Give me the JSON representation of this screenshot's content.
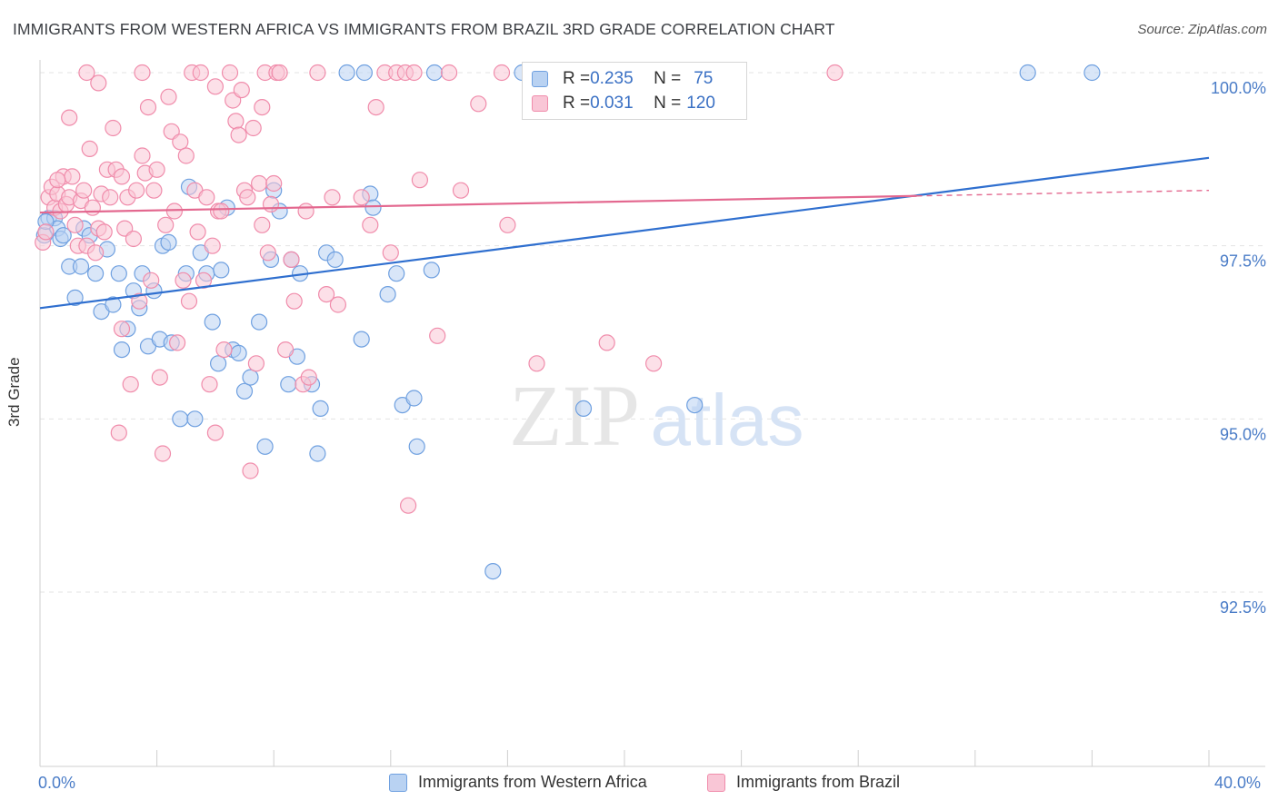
{
  "title": "IMMIGRANTS FROM WESTERN AFRICA VS IMMIGRANTS FROM BRAZIL 3RD GRADE CORRELATION CHART",
  "source": "Source: ZipAtlas.com",
  "watermark": {
    "zip": "ZIP",
    "atlas": "atlas"
  },
  "legend_box": {
    "rows": [
      {
        "r_label": "R = ",
        "r_value": "0.235",
        "n_label": "N = ",
        "n_value": "75",
        "color": "#6fa0e0"
      },
      {
        "r_label": "R = ",
        "r_value": "0.031",
        "n_label": "N = ",
        "n_value": "120",
        "color": "#f08cab"
      }
    ]
  },
  "bottom_legend": [
    {
      "label": "Immigrants from Western Africa",
      "color": "#6fa0e0"
    },
    {
      "label": "Immigrants from Brazil",
      "color": "#f08cab"
    }
  ],
  "chart_data": {
    "type": "scatter",
    "title": "IMMIGRANTS FROM WESTERN AFRICA VS IMMIGRANTS FROM BRAZIL 3RD GRADE CORRELATION CHART",
    "xlabel": "",
    "ylabel": "3rd Grade",
    "xlim": [
      0,
      40
    ],
    "ylim": [
      90.2,
      100.6
    ],
    "x_tick_labels": [
      "0.0%",
      "40.0%"
    ],
    "y_ticks": [
      92.5,
      95.0,
      97.5,
      100.0
    ],
    "y_tick_labels": [
      "92.5%",
      "95.0%",
      "97.5%",
      "100.0%"
    ],
    "grid": true,
    "series": [
      {
        "name": "Immigrants from Western Africa",
        "color": "#6fa0e0",
        "trend": {
          "x": [
            0,
            40
          ],
          "y": [
            96.6,
            98.77
          ]
        },
        "points": [
          [
            0.15,
            97.65
          ],
          [
            0.3,
            97.9
          ],
          [
            0.5,
            97.9
          ],
          [
            0.6,
            97.75
          ],
          [
            0.7,
            97.6
          ],
          [
            0.8,
            97.65
          ],
          [
            1.0,
            97.2
          ],
          [
            1.2,
            96.75
          ],
          [
            1.4,
            97.2
          ],
          [
            1.5,
            97.75
          ],
          [
            1.7,
            97.65
          ],
          [
            1.9,
            97.1
          ],
          [
            2.1,
            96.55
          ],
          [
            2.3,
            97.45
          ],
          [
            2.5,
            96.65
          ],
          [
            2.7,
            97.1
          ],
          [
            2.8,
            96.0
          ],
          [
            3.0,
            96.3
          ],
          [
            3.2,
            96.85
          ],
          [
            3.4,
            96.6
          ],
          [
            3.5,
            97.1
          ],
          [
            3.7,
            96.05
          ],
          [
            3.9,
            96.85
          ],
          [
            4.1,
            96.15
          ],
          [
            4.2,
            97.5
          ],
          [
            4.5,
            96.1
          ],
          [
            4.4,
            97.55
          ],
          [
            4.8,
            95.0
          ],
          [
            5.0,
            97.1
          ],
          [
            5.1,
            98.35
          ],
          [
            5.3,
            95.0
          ],
          [
            5.5,
            97.4
          ],
          [
            5.7,
            97.1
          ],
          [
            5.9,
            96.4
          ],
          [
            6.1,
            95.8
          ],
          [
            6.2,
            97.15
          ],
          [
            6.4,
            98.05
          ],
          [
            6.6,
            96.0
          ],
          [
            6.8,
            95.95
          ],
          [
            7.0,
            95.4
          ],
          [
            7.2,
            95.6
          ],
          [
            7.5,
            96.4
          ],
          [
            7.7,
            94.6
          ],
          [
            7.9,
            97.3
          ],
          [
            8.0,
            98.3
          ],
          [
            8.2,
            98.0
          ],
          [
            8.5,
            95.5
          ],
          [
            8.6,
            97.3
          ],
          [
            8.8,
            95.9
          ],
          [
            8.9,
            97.1
          ],
          [
            9.3,
            95.5
          ],
          [
            9.5,
            94.5
          ],
          [
            9.6,
            95.15
          ],
          [
            9.8,
            97.4
          ],
          [
            10.1,
            97.3
          ],
          [
            10.5,
            100.0
          ],
          [
            11.1,
            100.0
          ],
          [
            11.0,
            96.15
          ],
          [
            11.3,
            98.25
          ],
          [
            11.4,
            98.05
          ],
          [
            11.9,
            96.8
          ],
          [
            12.2,
            97.1
          ],
          [
            12.4,
            95.2
          ],
          [
            12.9,
            94.6
          ],
          [
            12.8,
            95.3
          ],
          [
            13.4,
            97.15
          ],
          [
            13.5,
            100.0
          ],
          [
            15.5,
            92.8
          ],
          [
            16.5,
            100.0
          ],
          [
            18.2,
            100.0
          ],
          [
            18.6,
            95.15
          ],
          [
            22.4,
            95.2
          ],
          [
            33.8,
            100.0
          ],
          [
            36.0,
            100.0
          ],
          [
            0.2,
            97.85
          ]
        ]
      },
      {
        "name": "Immigrants from Brazil",
        "color": "#f08cab",
        "trend": {
          "x": [
            0,
            30
          ],
          "y": [
            97.98,
            98.22
          ]
        },
        "trend_dashed": {
          "x": [
            30,
            40
          ],
          "y": [
            98.22,
            98.3
          ]
        },
        "points": [
          [
            0.1,
            97.55
          ],
          [
            0.2,
            97.7
          ],
          [
            0.3,
            98.2
          ],
          [
            0.4,
            98.35
          ],
          [
            0.5,
            98.05
          ],
          [
            0.6,
            98.25
          ],
          [
            0.7,
            98.0
          ],
          [
            0.8,
            98.5
          ],
          [
            0.9,
            98.1
          ],
          [
            1.0,
            98.2
          ],
          [
            1.1,
            98.5
          ],
          [
            1.2,
            97.8
          ],
          [
            1.3,
            97.5
          ],
          [
            1.4,
            98.15
          ],
          [
            1.5,
            98.3
          ],
          [
            1.6,
            97.5
          ],
          [
            1.7,
            98.9
          ],
          [
            1.8,
            98.05
          ],
          [
            1.9,
            97.4
          ],
          [
            2.0,
            97.75
          ],
          [
            2.1,
            98.25
          ],
          [
            2.2,
            97.7
          ],
          [
            2.3,
            98.6
          ],
          [
            2.4,
            98.2
          ],
          [
            2.5,
            99.2
          ],
          [
            2.6,
            98.6
          ],
          [
            2.7,
            94.8
          ],
          [
            2.8,
            98.5
          ],
          [
            2.9,
            97.75
          ],
          [
            3.0,
            98.2
          ],
          [
            3.1,
            95.5
          ],
          [
            3.2,
            97.6
          ],
          [
            3.3,
            98.3
          ],
          [
            3.4,
            96.7
          ],
          [
            3.5,
            98.8
          ],
          [
            3.6,
            98.55
          ],
          [
            3.7,
            99.5
          ],
          [
            3.8,
            97.0
          ],
          [
            3.9,
            98.3
          ],
          [
            4.0,
            98.6
          ],
          [
            4.1,
            95.6
          ],
          [
            4.2,
            94.5
          ],
          [
            4.3,
            97.8
          ],
          [
            4.4,
            99.65
          ],
          [
            4.5,
            99.15
          ],
          [
            4.6,
            98.0
          ],
          [
            4.7,
            96.1
          ],
          [
            4.8,
            99.0
          ],
          [
            4.9,
            97.0
          ],
          [
            5.0,
            98.8
          ],
          [
            5.1,
            96.7
          ],
          [
            5.2,
            100.0
          ],
          [
            5.3,
            98.3
          ],
          [
            5.4,
            97.7
          ],
          [
            5.5,
            100.0
          ],
          [
            5.6,
            97.0
          ],
          [
            5.7,
            98.2
          ],
          [
            5.8,
            95.5
          ],
          [
            5.9,
            97.5
          ],
          [
            6.0,
            99.8
          ],
          [
            6.1,
            98.0
          ],
          [
            6.2,
            98.0
          ],
          [
            6.3,
            96.0
          ],
          [
            6.5,
            100.0
          ],
          [
            6.6,
            99.6
          ],
          [
            6.7,
            99.3
          ],
          [
            6.8,
            99.1
          ],
          [
            6.9,
            99.75
          ],
          [
            7.0,
            98.3
          ],
          [
            7.1,
            98.2
          ],
          [
            7.3,
            99.2
          ],
          [
            7.4,
            95.8
          ],
          [
            7.5,
            98.4
          ],
          [
            7.6,
            99.5
          ],
          [
            7.7,
            100.0
          ],
          [
            7.8,
            97.4
          ],
          [
            7.9,
            98.1
          ],
          [
            8.0,
            98.4
          ],
          [
            8.1,
            100.0
          ],
          [
            8.2,
            100.0
          ],
          [
            8.4,
            96.0
          ],
          [
            8.6,
            97.3
          ],
          [
            8.7,
            96.7
          ],
          [
            9.0,
            95.5
          ],
          [
            9.1,
            98.0
          ],
          [
            9.2,
            95.6
          ],
          [
            9.5,
            100.0
          ],
          [
            9.8,
            96.8
          ],
          [
            10.0,
            98.2
          ],
          [
            10.2,
            96.65
          ],
          [
            11.0,
            98.2
          ],
          [
            11.3,
            97.8
          ],
          [
            11.5,
            99.5
          ],
          [
            11.8,
            100.0
          ],
          [
            12.0,
            97.4
          ],
          [
            12.2,
            100.0
          ],
          [
            12.5,
            100.0
          ],
          [
            12.6,
            93.75
          ],
          [
            12.8,
            100.0
          ],
          [
            13.0,
            98.45
          ],
          [
            13.6,
            96.2
          ],
          [
            14.0,
            100.0
          ],
          [
            14.4,
            98.3
          ],
          [
            15.0,
            99.55
          ],
          [
            15.8,
            100.0
          ],
          [
            16.0,
            97.8
          ],
          [
            17.0,
            95.8
          ],
          [
            18.0,
            100.0
          ],
          [
            19.4,
            96.1
          ],
          [
            21.0,
            95.8
          ],
          [
            27.2,
            100.0
          ],
          [
            1.6,
            100.0
          ],
          [
            3.5,
            100.0
          ],
          [
            2.0,
            99.85
          ],
          [
            6.0,
            94.8
          ],
          [
            2.8,
            96.3
          ],
          [
            7.2,
            94.25
          ],
          [
            7.6,
            97.8
          ],
          [
            0.6,
            98.45
          ],
          [
            1.0,
            99.35
          ]
        ]
      }
    ]
  }
}
